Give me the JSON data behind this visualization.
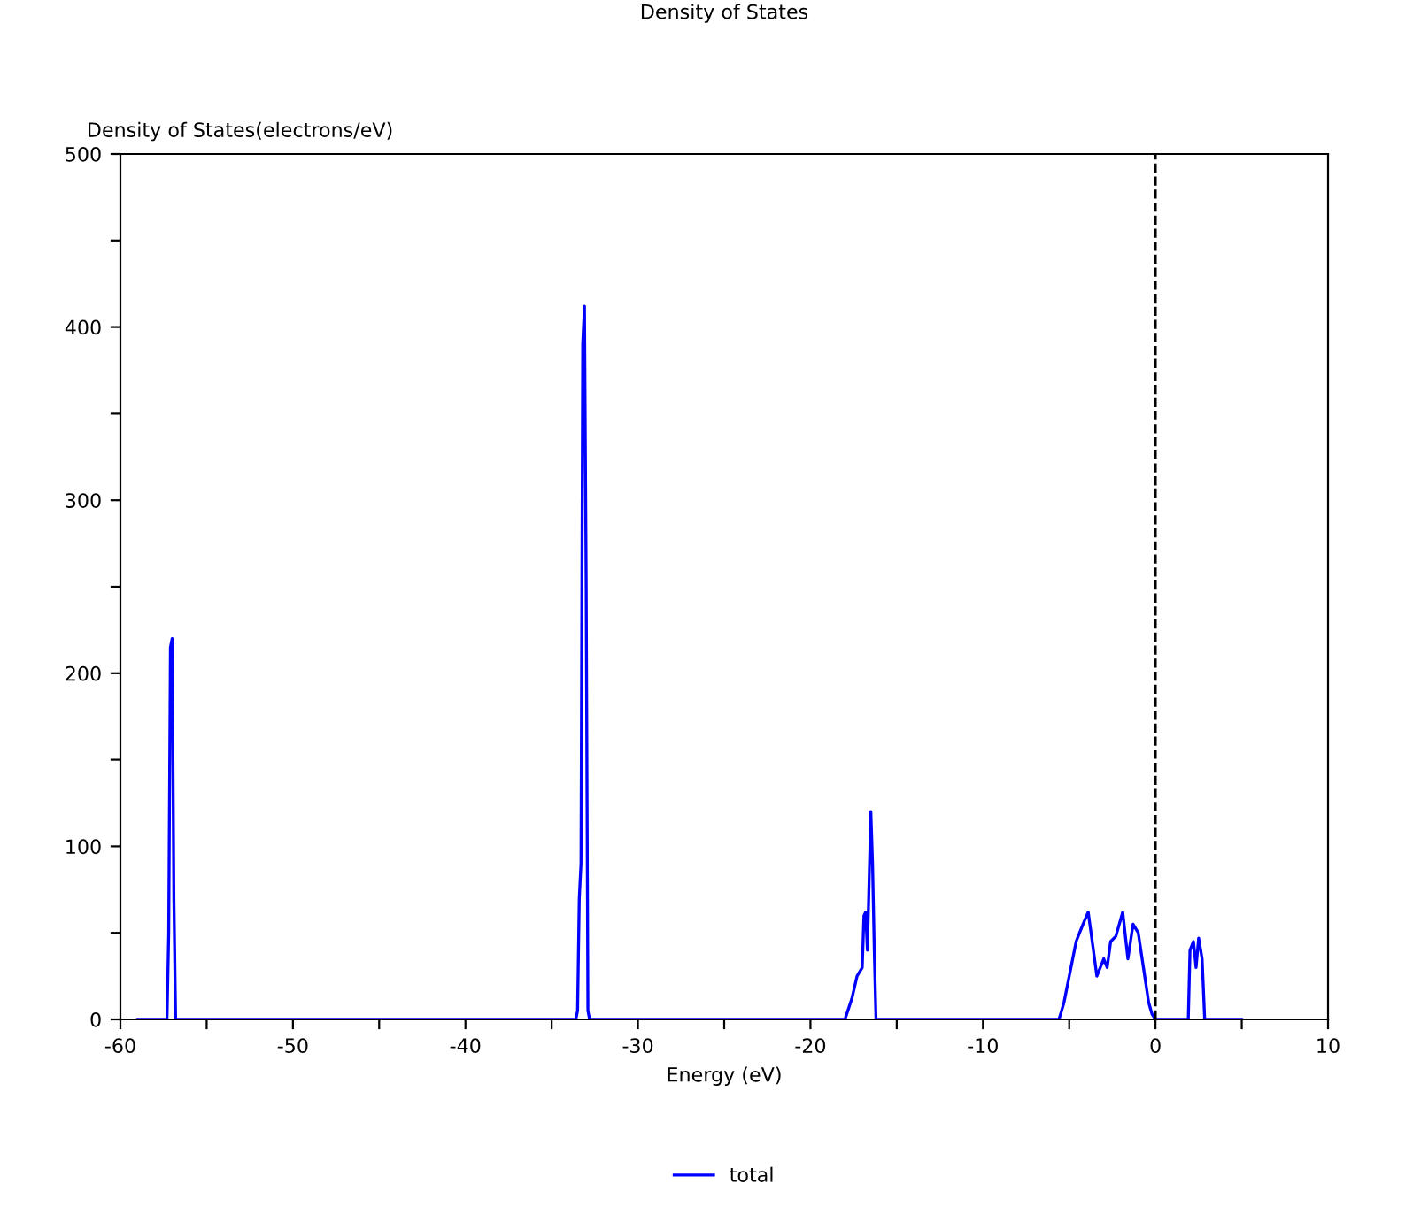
{
  "chart_data": {
    "type": "line",
    "title": "Density of States",
    "xlabel": "Energy (eV)",
    "ylabel": "Density of States(electrons/eV)",
    "series": [
      {
        "name": "total",
        "color": "#0000ff",
        "x": [
          -59,
          -57.3,
          -57.2,
          -57.1,
          -57.0,
          -56.9,
          -56.8,
          -33.6,
          -33.5,
          -33.4,
          -33.3,
          -33.2,
          -33.1,
          -33.0,
          -32.9,
          -32.8,
          -18.0,
          -17.9,
          -17.6,
          -17.3,
          -17.0,
          -16.9,
          -16.8,
          -16.7,
          -16.5,
          -16.4,
          -16.3,
          -16.2,
          -5.6,
          -5.5,
          -5.3,
          -4.9,
          -4.6,
          -4.2,
          -3.9,
          -3.6,
          -3.4,
          -3.0,
          -2.8,
          -2.6,
          -2.3,
          -1.9,
          -1.6,
          -1.3,
          -1.0,
          -0.7,
          -0.4,
          -0.2,
          0,
          1.9,
          2.0,
          2.2,
          2.35,
          2.5,
          2.7,
          2.85,
          5
        ],
        "values": [
          0,
          0,
          50,
          215,
          220,
          70,
          0,
          0,
          5,
          70,
          90,
          390,
          412,
          250,
          5,
          0,
          0,
          3,
          12,
          25,
          30,
          60,
          62,
          40,
          120,
          90,
          40,
          0,
          0,
          3,
          10,
          30,
          45,
          55,
          62,
          40,
          25,
          35,
          30,
          45,
          48,
          62,
          35,
          55,
          50,
          30,
          10,
          3,
          0,
          0,
          40,
          45,
          30,
          47,
          35,
          0,
          0
        ]
      }
    ],
    "xlim": [
      -60,
      10
    ],
    "xticks": [
      -60,
      {
        "value": -55,
        "label": null
      },
      -50,
      {
        "value": -45,
        "label": null
      },
      -40,
      {
        "value": -35,
        "label": null
      },
      -30,
      {
        "value": -25,
        "label": null
      },
      -20,
      {
        "value": -15,
        "label": null
      },
      -10,
      {
        "value": -5,
        "label": null
      },
      0,
      {
        "value": 5,
        "label": null
      },
      10
    ],
    "ylim": [
      0,
      500
    ],
    "yticks": [
      0,
      {
        "value": 50,
        "label": null
      },
      100,
      {
        "value": 150,
        "label": null
      },
      200,
      {
        "value": 250,
        "label": null
      },
      300,
      {
        "value": 350,
        "label": null
      },
      400,
      {
        "value": 450,
        "label": null
      },
      500
    ],
    "ref_lines": [
      {
        "axis": "x",
        "value": 0,
        "color": "#000000",
        "line_style": "dashed"
      }
    ],
    "legend": "bottom",
    "grid": false,
    "marker": "none",
    "line_style": "solid"
  }
}
